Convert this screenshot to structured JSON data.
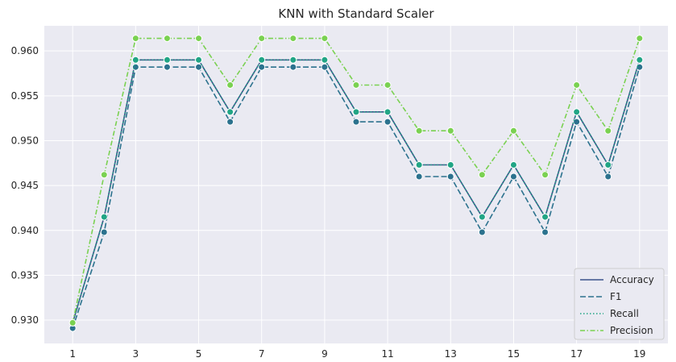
{
  "chart_data": {
    "type": "line",
    "title": "KNN with Standard Scaler",
    "xlabel": "",
    "ylabel": "",
    "x": [
      1,
      2,
      3,
      4,
      5,
      6,
      7,
      8,
      9,
      10,
      11,
      12,
      13,
      14,
      15,
      16,
      17,
      18,
      19
    ],
    "xticks": [
      1,
      3,
      5,
      7,
      9,
      11,
      13,
      15,
      17,
      19
    ],
    "yticks": [
      0.93,
      0.935,
      0.94,
      0.945,
      0.95,
      0.955,
      0.96
    ],
    "ytick_labels": [
      "0.930",
      "0.935",
      "0.940",
      "0.945",
      "0.950",
      "0.955",
      "0.960"
    ],
    "xlim": [
      0.1,
      19.9
    ],
    "ylim": [
      0.9274,
      0.9628
    ],
    "grid": true,
    "legend_position": "lower-right",
    "series": [
      {
        "name": "Accuracy",
        "color": "#3b528b",
        "dash": "solid",
        "values": [
          0.9297,
          0.9415,
          0.959,
          0.959,
          0.959,
          0.9532,
          0.959,
          0.959,
          0.959,
          0.9532,
          0.9532,
          0.9473,
          0.9473,
          0.9415,
          0.9473,
          0.9415,
          0.9532,
          0.9473,
          0.959
        ]
      },
      {
        "name": "F1",
        "color": "#2c728e",
        "dash": "dashed",
        "values": [
          0.9291,
          0.9398,
          0.9582,
          0.9582,
          0.9582,
          0.9521,
          0.9582,
          0.9582,
          0.9582,
          0.9521,
          0.9521,
          0.946,
          0.946,
          0.9398,
          0.946,
          0.9398,
          0.9521,
          0.946,
          0.9582
        ]
      },
      {
        "name": "Recall",
        "color": "#21a585",
        "dash": "dotted",
        "values": [
          0.9297,
          0.9415,
          0.959,
          0.959,
          0.959,
          0.9532,
          0.959,
          0.959,
          0.959,
          0.9532,
          0.9532,
          0.9473,
          0.9473,
          0.9415,
          0.9473,
          0.9415,
          0.9532,
          0.9473,
          0.959
        ]
      },
      {
        "name": "Precision",
        "color": "#7ad151",
        "dash": "dashdot",
        "values": [
          0.9297,
          0.9462,
          0.9614,
          0.9614,
          0.9614,
          0.9562,
          0.9614,
          0.9614,
          0.9614,
          0.9562,
          0.9562,
          0.9511,
          0.9511,
          0.9462,
          0.9511,
          0.9462,
          0.9562,
          0.9511,
          0.9614
        ]
      }
    ]
  }
}
